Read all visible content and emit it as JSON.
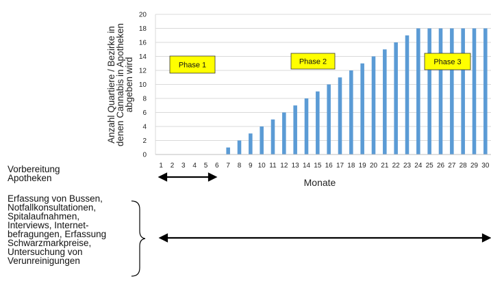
{
  "chart_data": {
    "type": "bar",
    "title": "",
    "xlabel": "Monate",
    "ylabel_lines": [
      "Anzahl Quartiere / Bezirke  in",
      "denen Cannabis in Apotheken",
      "abgeben wird"
    ],
    "categories": [
      "1",
      "2",
      "3",
      "4",
      "5",
      "6",
      "7",
      "8",
      "9",
      "10",
      "11",
      "12",
      "13",
      "14",
      "15",
      "16",
      "17",
      "18",
      "19",
      "20",
      "21",
      "22",
      "23",
      "24",
      "25",
      "26",
      "27",
      "28",
      "29",
      "30"
    ],
    "values": [
      0,
      0,
      0,
      0,
      0,
      0,
      1,
      2,
      3,
      4,
      5,
      6,
      7,
      8,
      9,
      10,
      11,
      12,
      13,
      14,
      15,
      16,
      17,
      18,
      18,
      18,
      18,
      18,
      18,
      18
    ],
    "ylim": [
      0,
      20
    ],
    "yticks": [
      "0",
      "2",
      "4",
      "6",
      "8",
      "10",
      "12",
      "14",
      "16",
      "18",
      "20"
    ],
    "grid": true,
    "bar_color": "#5b9bd5",
    "phases": [
      {
        "label": "Phase 1"
      },
      {
        "label": "Phase 2"
      },
      {
        "label": "Phase 3"
      }
    ],
    "phase_box_color": "#ffff00"
  },
  "annotations": {
    "prep_lines": [
      "Vorbereitung",
      "Apotheken"
    ],
    "methods_lines": [
      "Erfassung von Bussen,",
      "Notfallkonsultationen,",
      "Spitalaufnahmen,",
      "Interviews, Internet-",
      "befragungen, Erfassung",
      "Schwarzmarkpreise,",
      "Untersuchung von",
      "Verunreinigungen"
    ]
  }
}
